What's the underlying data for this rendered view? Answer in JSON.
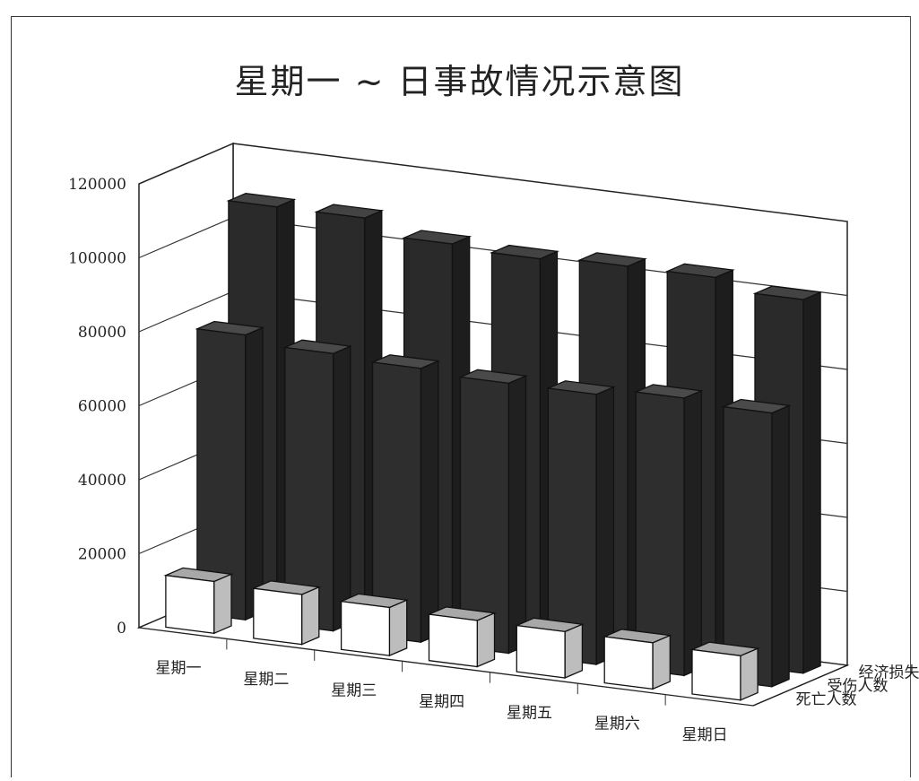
{
  "chart_data": {
    "type": "bar",
    "subtype": "3d-clustered-depth",
    "title": "星期一 ~ 日事故情况示意图",
    "categories": [
      "星期一",
      "星期二",
      "星期三",
      "星期四",
      "星期五",
      "星期六",
      "星期日"
    ],
    "series": [
      {
        "name": "经济损失",
        "values": [
          108000,
          108000,
          104000,
          103000,
          104000,
          104000,
          101000
        ],
        "color": "#2a2a2a"
      },
      {
        "name": "受伤人数",
        "values": [
          77000,
          75000,
          74000,
          73000,
          73000,
          75000,
          74000
        ],
        "color": "#2e2e2e"
      },
      {
        "name": "死亡人数",
        "values": [
          14000,
          13500,
          13000,
          12500,
          12500,
          12500,
          12000
        ],
        "color": "#ffffff"
      }
    ],
    "y_ticks": [
      "0",
      "20000",
      "40000",
      "60000",
      "80000",
      "100000",
      "120000"
    ],
    "ylim": [
      0,
      120000
    ],
    "grid": true,
    "legend": "depth-axis"
  }
}
